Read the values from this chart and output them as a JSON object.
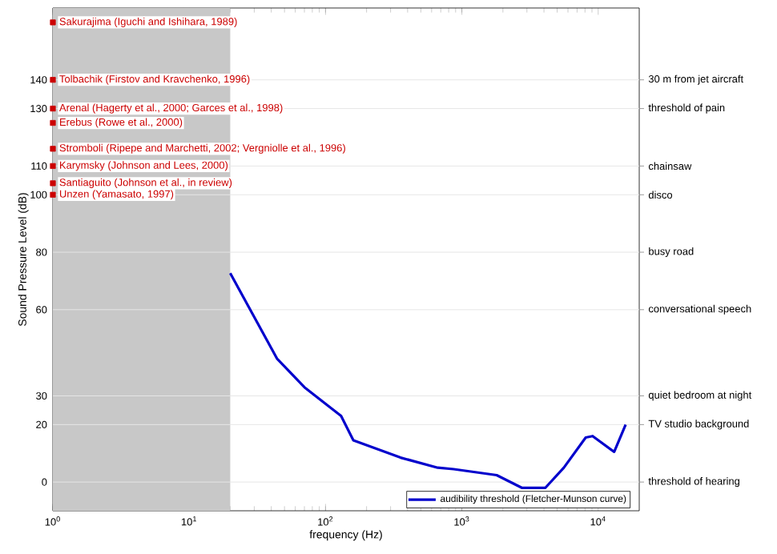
{
  "chart_data": {
    "type": "line",
    "xlabel": "frequency (Hz)",
    "ylabel": "Sound Pressure Level (dB)",
    "log": "x",
    "legend": "bottom right",
    "xlim": [
      1,
      20000
    ],
    "xticks": [
      {
        "value": 1,
        "label": "10$^{0}$"
      },
      {
        "value": 10,
        "label": "10$^{1}$"
      },
      {
        "value": 100,
        "label": "10$^{2}$"
      },
      {
        "value": 1000,
        "label": "10$^{3}$"
      },
      {
        "value": 10000,
        "label": "10$^{4}$"
      }
    ],
    "ylim": [
      -10,
      165
    ],
    "yticks": [
      0,
      20,
      30,
      60,
      80,
      100,
      110,
      130,
      140
    ],
    "ref_lines": [
      {
        "axis": "y",
        "value": 0,
        "label": "threshold of hearing",
        "color": "#e6e6e6"
      },
      {
        "axis": "y",
        "value": 20,
        "label": "TV studio background",
        "color": "#e6e6e6"
      },
      {
        "axis": "y",
        "value": 30,
        "label": "quiet bedroom at night",
        "color": "#e6e6e6"
      },
      {
        "axis": "y",
        "value": 60,
        "label": "conversational speech",
        "color": "#e6e6e6"
      },
      {
        "axis": "y",
        "value": 80,
        "label": "busy road",
        "color": "#e6e6e6"
      },
      {
        "axis": "y",
        "value": 100,
        "label": "disco",
        "color": "#e6e6e6"
      },
      {
        "axis": "y",
        "value": 110,
        "label": "chainsaw",
        "color": "#e6e6e6"
      },
      {
        "axis": "y",
        "value": 130,
        "label": "threshold of pain",
        "color": "#e6e6e6"
      },
      {
        "axis": "y",
        "value": 140,
        "label": "30 m from jet aircraft",
        "color": "#e6e6e6"
      }
    ],
    "bands": [
      {
        "axis": "x",
        "from": 1,
        "to": 20,
        "color": "#c8c8c8"
      }
    ],
    "series": [
      {
        "name": "audibility threshold (Fletcher-Munson curve)",
        "color": "#0000cc",
        "x": [
          20,
          44,
          70,
          130,
          160,
          355,
          665,
          870,
          1800,
          2750,
          4100,
          5600,
          8100,
          9100,
          13100,
          15900
        ],
        "values": [
          72.7,
          43,
          33,
          23,
          14.5,
          8.5,
          5,
          4.5,
          2.4,
          -2,
          -2,
          5,
          15.5,
          16,
          10.5,
          20
        ]
      },
      {
        "type": "scatter",
        "marker": "square",
        "color": "#cc0000",
        "x": [
          1,
          1,
          1,
          1,
          1,
          1,
          1,
          1
        ],
        "values": [
          160,
          140,
          130,
          125,
          116,
          110,
          104,
          100
        ]
      }
    ],
    "annotations": [
      "Sakurajima (Iguchi and Ishihara, 1989)",
      "Tolbachik (Firstov and Kravchenko, 1996)",
      "Arenal (Hagerty et al., 2000; Garces et al., 1998)",
      "Erebus (Rowe et al., 2000)",
      "Stromboli (Ripepe and Marchetti, 2002; Vergniolle et al., 1996)",
      "Karymsky (Johnson and Lees, 2000)",
      "Santiaguito (Johnson et al., in review)",
      "Unzen (Yamasato, 1997)"
    ]
  }
}
